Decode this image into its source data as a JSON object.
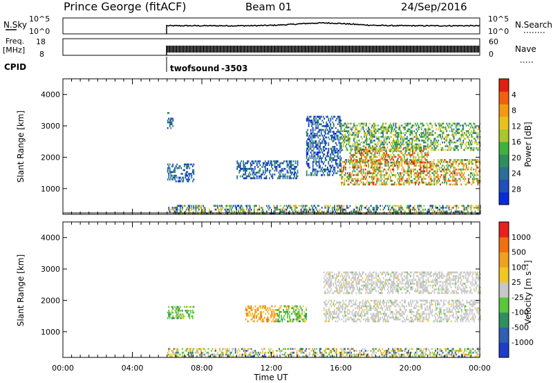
{
  "header": {
    "station": "Prince George (fitACF)",
    "beam": "Beam 01",
    "date": "24/Sep/2016"
  },
  "noise_panel": {
    "left_label": "N.Sky",
    "right_label": "N.Search",
    "left_ticks": [
      "10^5",
      "10^0"
    ],
    "right_ticks": [
      "10^5",
      "10^0"
    ]
  },
  "freq_panel": {
    "left_label_1": "Freq.",
    "left_label_2": "[MHz]",
    "right_label": "Nave",
    "left_ticks": [
      "18",
      "8"
    ],
    "right_ticks": [
      "60",
      "0"
    ]
  },
  "cpid": {
    "label": "CPID",
    "program": "twofsound",
    "id": "-3503"
  },
  "chart_data": [
    {
      "type": "heatmap",
      "name": "power",
      "ylabel": "Slant Range [km]",
      "ylim": [
        180,
        4500
      ],
      "yticks": [
        "1000",
        "2000",
        "3000",
        "4000"
      ],
      "xlim": [
        "00:00",
        "24:00"
      ],
      "colorbar": {
        "label": "Power [dB]",
        "ticks": [
          "4",
          "8",
          "12",
          "16",
          "20",
          "24",
          "28"
        ],
        "colors": [
          "#0b2bd8",
          "#2050b8",
          "#2a6f9a",
          "#2f8f5a",
          "#3fb13f",
          "#a8c82d",
          "#e8c21c",
          "#f59a10",
          "#f06010",
          "#e02010"
        ]
      },
      "data_start": "06:00",
      "regions": [
        {
          "t": [
            6.0,
            24.0
          ],
          "r": [
            180,
            450
          ],
          "level": "mixed"
        },
        {
          "t": [
            6.0,
            6.3
          ],
          "r": [
            2900,
            3400
          ],
          "level": "low"
        },
        {
          "t": [
            6.0,
            7.5
          ],
          "r": [
            1200,
            1800
          ],
          "level": "low"
        },
        {
          "t": [
            10.0,
            13.5
          ],
          "r": [
            1300,
            1900
          ],
          "level": "low"
        },
        {
          "t": [
            14.0,
            16.0
          ],
          "r": [
            1400,
            3300
          ],
          "level": "low"
        },
        {
          "t": [
            16.0,
            24.0
          ],
          "r": [
            2200,
            3100
          ],
          "level": "medium"
        },
        {
          "t": [
            16.5,
            21.0
          ],
          "r": [
            1800,
            2300
          ],
          "level": "high"
        },
        {
          "t": [
            16.0,
            24.0
          ],
          "r": [
            1100,
            1900
          ],
          "level": "high"
        }
      ]
    },
    {
      "type": "heatmap",
      "name": "velocity",
      "ylabel": "Slant Range [km]",
      "ylim": [
        180,
        4500
      ],
      "yticks": [
        "1000",
        "2000",
        "3000",
        "4000"
      ],
      "xticks": [
        "00:00",
        "04:00",
        "08:00",
        "12:00",
        "16:00",
        "20:00",
        "00:00"
      ],
      "xlabel": "Time UT",
      "colorbar": {
        "label": "Velocity [m s⁻¹]",
        "ticks": [
          "1000",
          "500",
          "100",
          "25",
          "-25",
          "-100",
          "-500",
          "-1000"
        ],
        "colors": [
          "#1e3cc8",
          "#2e5fb0",
          "#2f8f60",
          "#5ac83a",
          "#c8c8c8",
          "#f0c820",
          "#f0a020",
          "#f07010",
          "#e82020"
        ]
      },
      "data_start": "06:00",
      "regions": [
        {
          "t": [
            6.0,
            24.0
          ],
          "r": [
            180,
            450
          ],
          "level": "mixed"
        },
        {
          "t": [
            6.0,
            7.5
          ],
          "r": [
            1400,
            1800
          ],
          "level": "toward"
        },
        {
          "t": [
            10.5,
            12.3
          ],
          "r": [
            1300,
            1800
          ],
          "level": "away"
        },
        {
          "t": [
            12.3,
            14.0
          ],
          "r": [
            1300,
            1800
          ],
          "level": "toward"
        },
        {
          "t": [
            15.0,
            24.0
          ],
          "r": [
            2200,
            2900
          ],
          "level": "ground"
        },
        {
          "t": [
            15.0,
            24.0
          ],
          "r": [
            1300,
            2000
          ],
          "level": "ground"
        }
      ]
    }
  ]
}
